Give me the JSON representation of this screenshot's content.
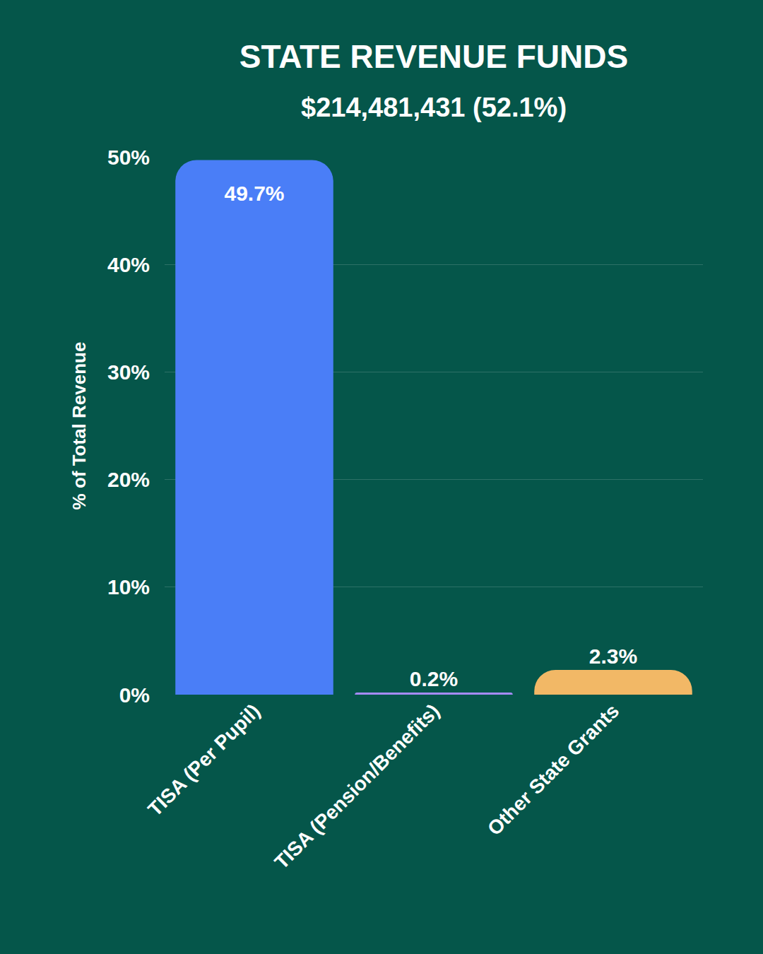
{
  "chart_data": {
    "type": "bar",
    "title": "STATE REVENUE FUNDS",
    "subtitle": "$214,481,431 (52.1%)",
    "y_label": "% of Total Revenue",
    "categories": [
      "TISA (Per Pupil)",
      "TISA (Pension/Benefits)",
      "Other State Grants"
    ],
    "values": [
      49.7,
      0.2,
      2.3
    ],
    "value_labels": [
      "49.7%",
      "0.2%",
      "2.3%"
    ],
    "colors": [
      "#4a7ef7",
      "#a78bfa",
      "#f2b866"
    ],
    "ylim": [
      0,
      50
    ],
    "yticks": [
      {
        "value": 0,
        "label": "0%"
      },
      {
        "value": 10,
        "label": "10%"
      },
      {
        "value": 20,
        "label": "20%"
      },
      {
        "value": 30,
        "label": "30%"
      },
      {
        "value": 40,
        "label": "40%"
      },
      {
        "value": 50,
        "label": "50%"
      }
    ],
    "grid": true,
    "data_labels": true
  }
}
